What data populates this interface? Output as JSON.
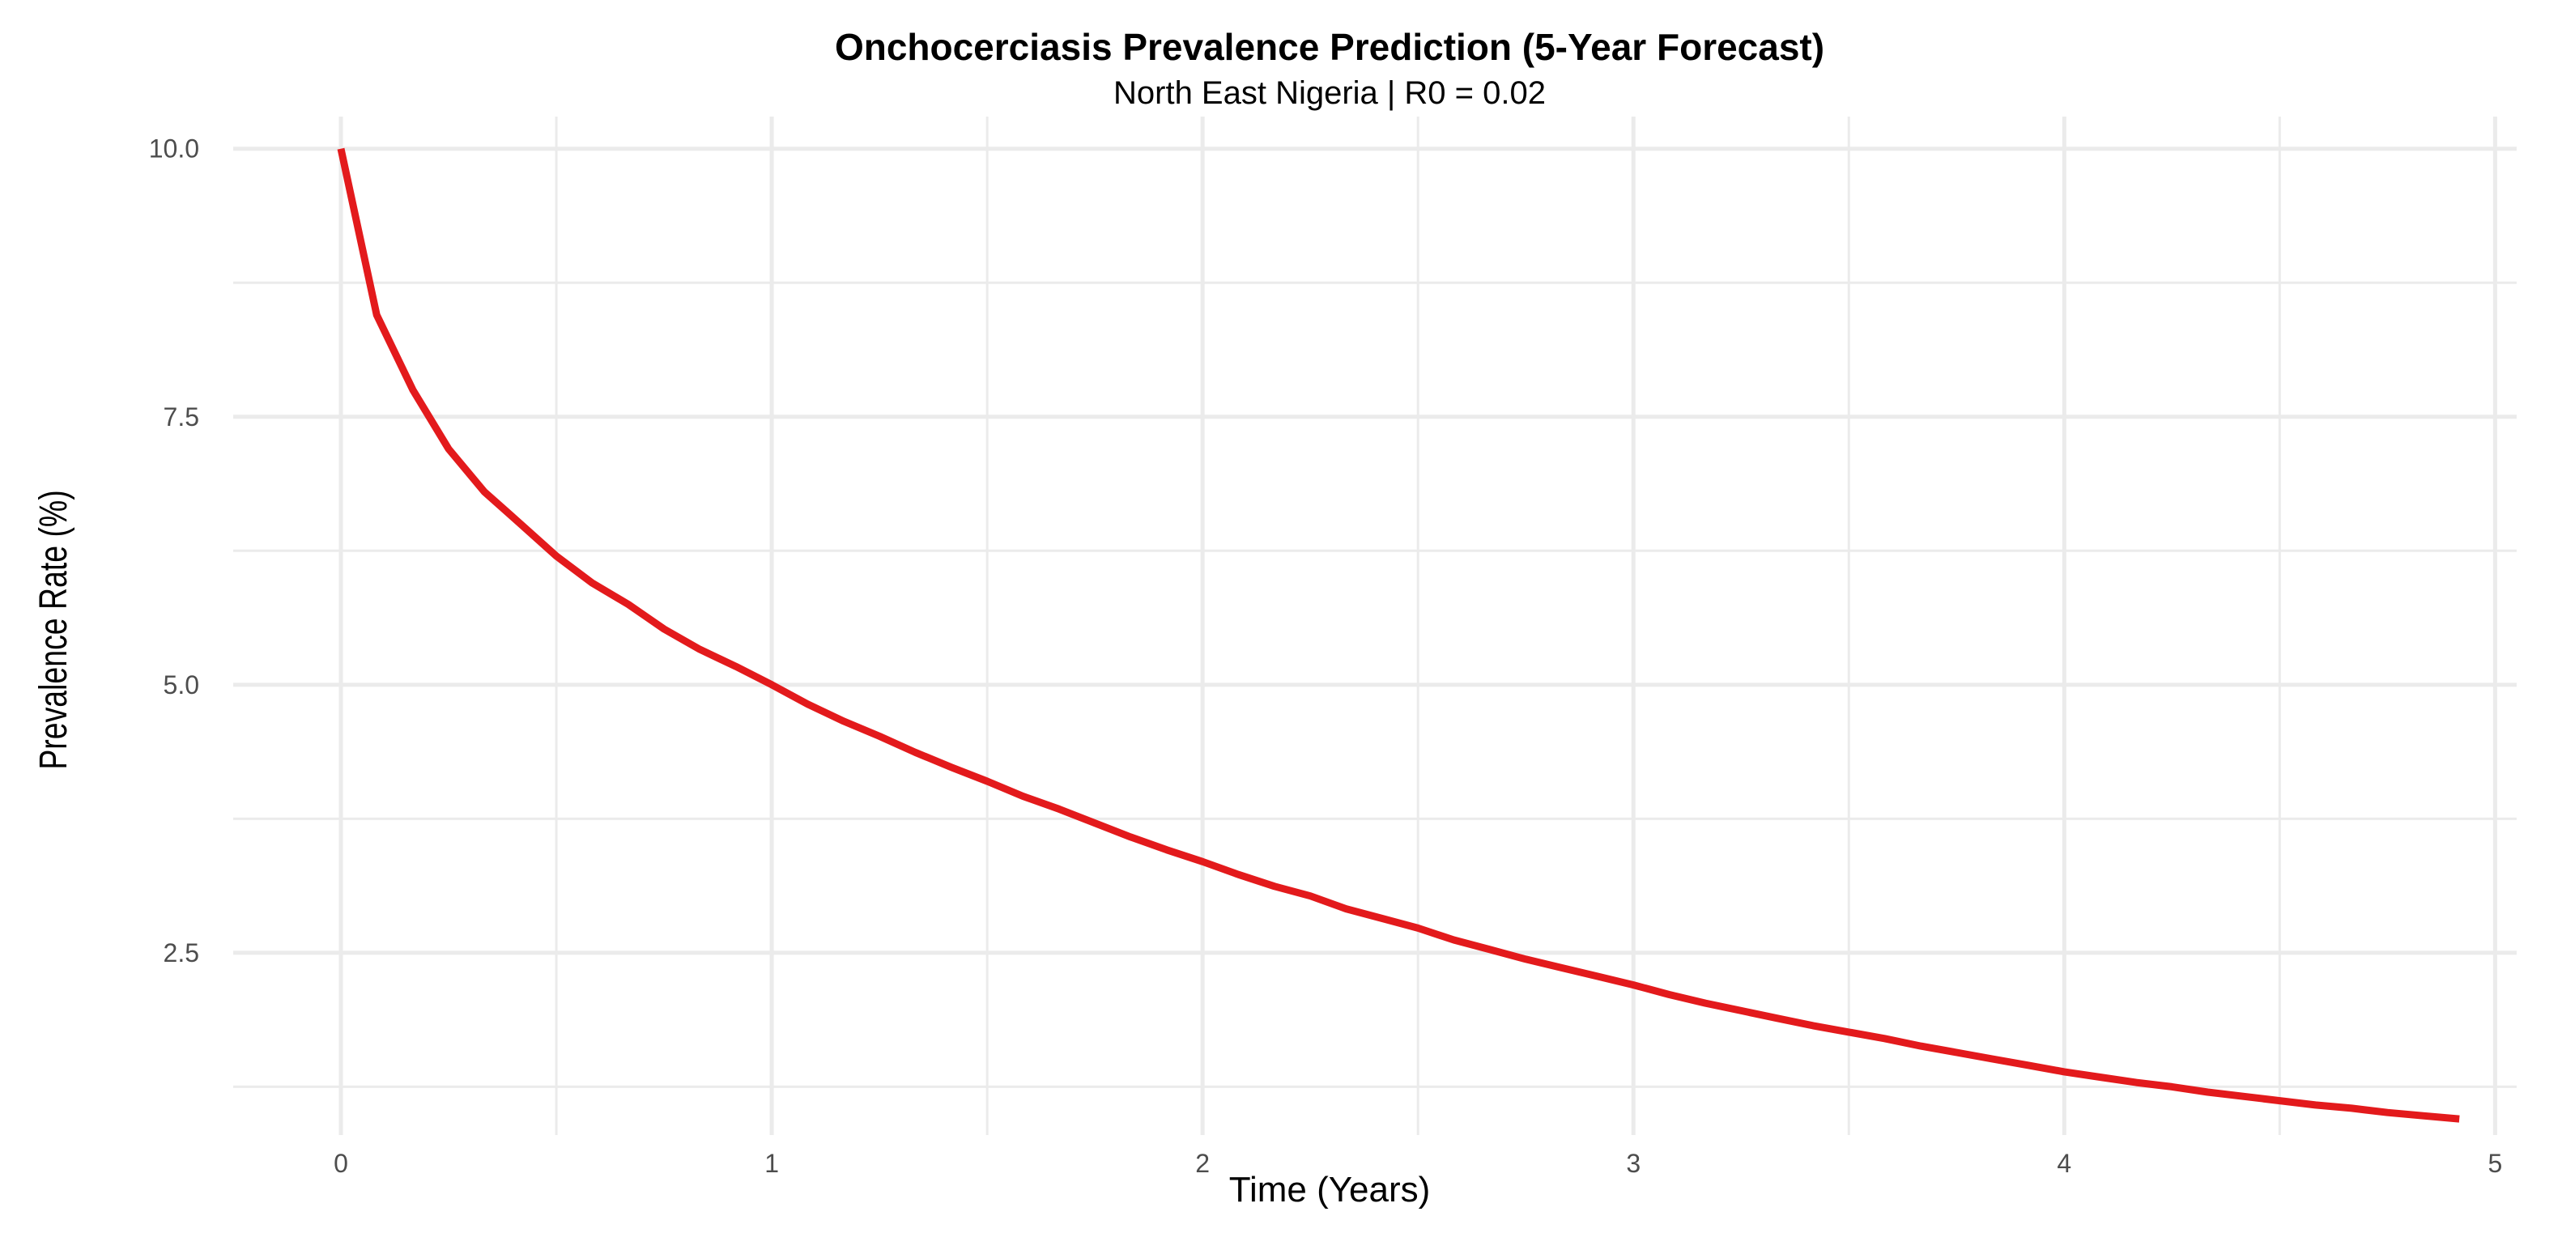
{
  "chart_data": {
    "type": "line",
    "title": "Onchocerciasis Prevalence Prediction (5-Year Forecast)",
    "subtitle": "North East Nigeria | R0 = 0.02",
    "xlabel": "Time (Years)",
    "ylabel": "Prevalence Rate (%)",
    "xlim": [
      -0.25,
      5.05
    ],
    "ylim": [
      0.8,
      10.3
    ],
    "x_ticks": [
      0,
      1,
      2,
      3,
      4,
      5
    ],
    "x_tick_labels": [
      "0",
      "1",
      "2",
      "3",
      "4",
      "5"
    ],
    "y_ticks": [
      2.5,
      5.0,
      7.5,
      10.0
    ],
    "y_tick_labels": [
      "2.5",
      "5.0",
      "7.5",
      "10.0"
    ],
    "x_minor_gridlines": [
      0.5,
      1.5,
      2.5,
      3.5,
      4.5
    ],
    "y_minor_gridlines": [
      1.25,
      3.75,
      6.25,
      8.75
    ],
    "grid": true,
    "legend": "none",
    "colors": {
      "line": "#e31a1c",
      "grid": "#ebebeb",
      "tick_text": "#4d4d4d",
      "title_text": "#000000"
    },
    "series": [
      {
        "x": [
          0,
          0.083,
          0.167,
          0.25,
          0.333,
          0.417,
          0.5,
          0.583,
          0.667,
          0.75,
          0.833,
          0.917,
          1.0,
          1.083,
          1.167,
          1.25,
          1.333,
          1.417,
          1.5,
          1.583,
          1.667,
          1.75,
          1.833,
          1.917,
          2.0,
          2.083,
          2.167,
          2.25,
          2.333,
          2.417,
          2.5,
          2.583,
          2.667,
          2.75,
          2.833,
          2.917,
          3.0,
          3.083,
          3.167,
          3.25,
          3.333,
          3.417,
          3.5,
          3.583,
          3.667,
          3.75,
          3.833,
          3.917,
          4.0,
          4.083,
          4.167,
          4.25,
          4.333,
          4.417,
          4.5,
          4.583,
          4.667,
          4.75,
          4.833,
          4.917
        ],
        "values": [
          10.0,
          8.45,
          7.75,
          7.2,
          6.8,
          6.5,
          6.2,
          5.95,
          5.75,
          5.52,
          5.33,
          5.17,
          5.0,
          4.82,
          4.66,
          4.52,
          4.37,
          4.23,
          4.1,
          3.96,
          3.84,
          3.71,
          3.58,
          3.46,
          3.35,
          3.23,
          3.12,
          3.03,
          2.91,
          2.82,
          2.73,
          2.62,
          2.53,
          2.44,
          2.36,
          2.28,
          2.2,
          2.11,
          2.03,
          1.96,
          1.89,
          1.82,
          1.76,
          1.7,
          1.63,
          1.57,
          1.51,
          1.45,
          1.39,
          1.34,
          1.29,
          1.25,
          1.2,
          1.16,
          1.12,
          1.08,
          1.05,
          1.01,
          0.98,
          0.95
        ]
      }
    ]
  }
}
